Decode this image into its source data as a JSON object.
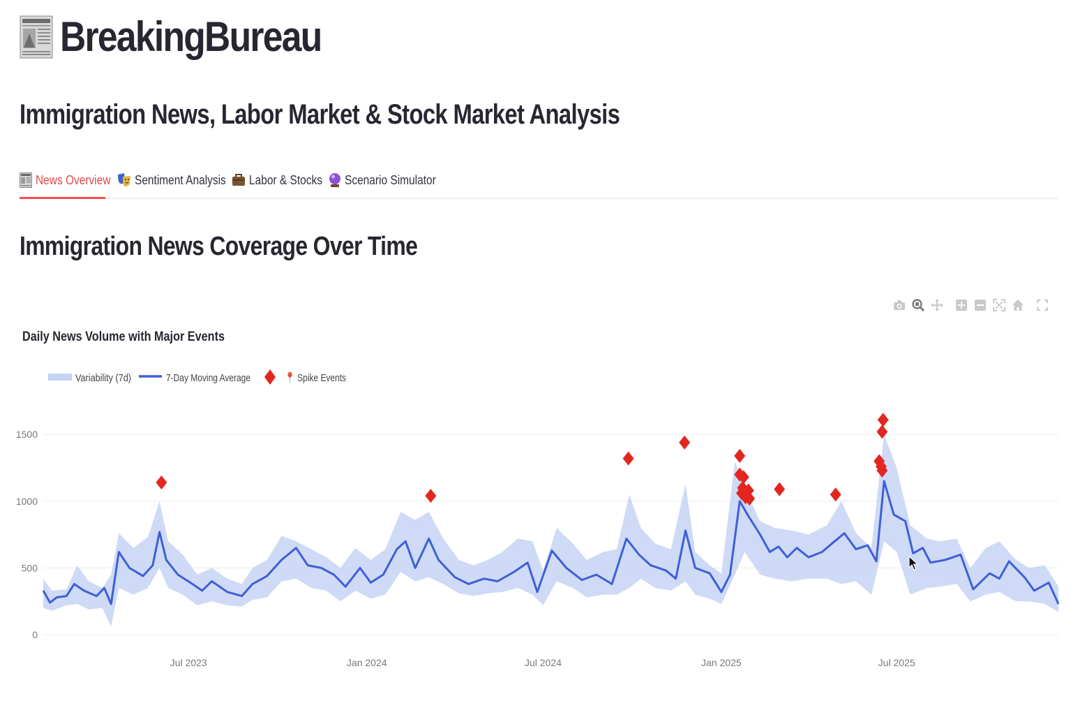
{
  "app": {
    "title": "BreakingBureau",
    "subtitle": "Immigration News, Labor Market & Stock Market Analysis"
  },
  "tabs": [
    {
      "label": "News Overview",
      "icon": "newspaper-icon",
      "active": true
    },
    {
      "label": "Sentiment Analysis",
      "icon": "theater-masks-icon",
      "active": false
    },
    {
      "label": "Labor & Stocks",
      "icon": "briefcase-icon",
      "active": false
    },
    {
      "label": "Scenario Simulator",
      "icon": "crystal-ball-icon",
      "active": false
    }
  ],
  "section": {
    "title": "Immigration News Coverage Over Time"
  },
  "modebar": [
    "camera-icon",
    "zoom-icon",
    "pan-icon",
    "zoom-in-icon",
    "zoom-out-icon",
    "autoscale-icon",
    "reset-axes-icon",
    "fullscreen-icon"
  ],
  "colors": {
    "accent": "#ff4b4b",
    "band": "#c6d3f5",
    "line": "#3f5fd6",
    "spike": "#e3261f",
    "grid": "#ebebeb",
    "text": "#262730"
  },
  "chart_data": {
    "type": "line",
    "title": "Daily News Volume with Major Events",
    "xlabel": "",
    "ylabel": "",
    "x_range": [
      "2023-02-01",
      "2025-12-15"
    ],
    "ylim": [
      0,
      1700
    ],
    "y_ticks": [
      0,
      500,
      1000,
      1500
    ],
    "x_ticks": [
      "Jul 2023",
      "Jan 2024",
      "Jul 2024",
      "Jan 2025",
      "Jul 2025"
    ],
    "x_tick_dates": [
      "2023-07-01",
      "2024-01-01",
      "2024-07-01",
      "2025-01-01",
      "2025-07-01"
    ],
    "grid": true,
    "legend_position": "top-left",
    "series": [
      {
        "name": "Variability (7d)",
        "kind": "band",
        "points": [
          [
            "2023-02-01",
            200,
            420
          ],
          [
            "2023-02-10",
            180,
            330
          ],
          [
            "2023-02-25",
            220,
            340
          ],
          [
            "2023-03-08",
            230,
            520
          ],
          [
            "2023-03-20",
            190,
            400
          ],
          [
            "2023-04-03",
            200,
            350
          ],
          [
            "2023-04-12",
            60,
            450
          ],
          [
            "2023-04-20",
            350,
            760
          ],
          [
            "2023-05-05",
            300,
            650
          ],
          [
            "2023-05-20",
            350,
            730
          ],
          [
            "2023-06-01",
            500,
            1000
          ],
          [
            "2023-06-10",
            350,
            700
          ],
          [
            "2023-06-25",
            300,
            600
          ],
          [
            "2023-07-10",
            220,
            450
          ],
          [
            "2023-07-25",
            250,
            500
          ],
          [
            "2023-08-10",
            220,
            420
          ],
          [
            "2023-08-25",
            210,
            380
          ],
          [
            "2023-09-05",
            260,
            500
          ],
          [
            "2023-09-20",
            280,
            560
          ],
          [
            "2023-10-05",
            400,
            740
          ],
          [
            "2023-10-20",
            420,
            700
          ],
          [
            "2023-11-05",
            350,
            640
          ],
          [
            "2023-11-20",
            330,
            580
          ],
          [
            "2023-12-05",
            250,
            500
          ],
          [
            "2023-12-20",
            330,
            650
          ],
          [
            "2024-01-05",
            270,
            560
          ],
          [
            "2024-01-20",
            300,
            640
          ],
          [
            "2024-02-05",
            470,
            920
          ],
          [
            "2024-02-20",
            400,
            860
          ],
          [
            "2024-03-05",
            430,
            920
          ],
          [
            "2024-03-20",
            380,
            720
          ],
          [
            "2024-04-05",
            310,
            560
          ],
          [
            "2024-04-20",
            290,
            520
          ],
          [
            "2024-05-05",
            310,
            560
          ],
          [
            "2024-05-20",
            320,
            620
          ],
          [
            "2024-06-05",
            350,
            720
          ],
          [
            "2024-06-20",
            300,
            700
          ],
          [
            "2024-07-01",
            220,
            480
          ],
          [
            "2024-07-15",
            400,
            800
          ],
          [
            "2024-08-01",
            350,
            680
          ],
          [
            "2024-08-15",
            280,
            560
          ],
          [
            "2024-09-01",
            300,
            620
          ],
          [
            "2024-09-15",
            300,
            640
          ],
          [
            "2024-09-28",
            350,
            1050
          ],
          [
            "2024-10-10",
            420,
            800
          ],
          [
            "2024-10-25",
            350,
            680
          ],
          [
            "2024-11-10",
            330,
            640
          ],
          [
            "2024-11-25",
            400,
            1130
          ],
          [
            "2024-12-05",
            300,
            620
          ],
          [
            "2024-12-20",
            270,
            520
          ],
          [
            "2025-01-01",
            230,
            460
          ],
          [
            "2025-01-15",
            450,
            1300
          ],
          [
            "2025-01-25",
            620,
            1100
          ],
          [
            "2025-02-10",
            450,
            850
          ],
          [
            "2025-02-25",
            420,
            800
          ],
          [
            "2025-03-15",
            400,
            780
          ],
          [
            "2025-04-01",
            420,
            750
          ],
          [
            "2025-04-20",
            420,
            820
          ],
          [
            "2025-05-05",
            380,
            1000
          ],
          [
            "2025-05-20",
            400,
            760
          ],
          [
            "2025-06-05",
            300,
            650
          ],
          [
            "2025-06-18",
            700,
            1500
          ],
          [
            "2025-07-01",
            620,
            1250
          ],
          [
            "2025-07-15",
            300,
            820
          ],
          [
            "2025-08-01",
            350,
            720
          ],
          [
            "2025-08-15",
            360,
            700
          ],
          [
            "2025-09-01",
            380,
            720
          ],
          [
            "2025-09-15",
            250,
            500
          ],
          [
            "2025-10-01",
            300,
            650
          ],
          [
            "2025-10-15",
            320,
            700
          ],
          [
            "2025-11-01",
            250,
            560
          ],
          [
            "2025-11-15",
            250,
            500
          ],
          [
            "2025-12-01",
            230,
            520
          ],
          [
            "2025-12-15",
            170,
            360
          ]
        ]
      },
      {
        "name": "7-Day Moving Average",
        "kind": "line",
        "points": [
          [
            "2023-02-01",
            330
          ],
          [
            "2023-02-08",
            240
          ],
          [
            "2023-02-15",
            280
          ],
          [
            "2023-02-25",
            290
          ],
          [
            "2023-03-05",
            380
          ],
          [
            "2023-03-15",
            330
          ],
          [
            "2023-03-28",
            290
          ],
          [
            "2023-04-05",
            350
          ],
          [
            "2023-04-12",
            230
          ],
          [
            "2023-04-20",
            620
          ],
          [
            "2023-05-01",
            500
          ],
          [
            "2023-05-15",
            440
          ],
          [
            "2023-05-25",
            520
          ],
          [
            "2023-06-01",
            770
          ],
          [
            "2023-06-08",
            560
          ],
          [
            "2023-06-20",
            450
          ],
          [
            "2023-07-05",
            380
          ],
          [
            "2023-07-15",
            330
          ],
          [
            "2023-07-25",
            400
          ],
          [
            "2023-08-10",
            320
          ],
          [
            "2023-08-25",
            290
          ],
          [
            "2023-09-05",
            380
          ],
          [
            "2023-09-20",
            440
          ],
          [
            "2023-10-05",
            560
          ],
          [
            "2023-10-20",
            650
          ],
          [
            "2023-11-01",
            520
          ],
          [
            "2023-11-15",
            500
          ],
          [
            "2023-11-28",
            450
          ],
          [
            "2023-12-10",
            360
          ],
          [
            "2023-12-25",
            500
          ],
          [
            "2024-01-05",
            390
          ],
          [
            "2024-01-18",
            450
          ],
          [
            "2024-02-01",
            640
          ],
          [
            "2024-02-10",
            700
          ],
          [
            "2024-02-20",
            500
          ],
          [
            "2024-03-05",
            720
          ],
          [
            "2024-03-15",
            560
          ],
          [
            "2024-04-01",
            430
          ],
          [
            "2024-04-15",
            380
          ],
          [
            "2024-05-01",
            420
          ],
          [
            "2024-05-15",
            400
          ],
          [
            "2024-06-01",
            470
          ],
          [
            "2024-06-15",
            540
          ],
          [
            "2024-06-25",
            320
          ],
          [
            "2024-07-10",
            630
          ],
          [
            "2024-07-25",
            500
          ],
          [
            "2024-08-10",
            410
          ],
          [
            "2024-08-25",
            450
          ],
          [
            "2024-09-10",
            380
          ],
          [
            "2024-09-25",
            720
          ],
          [
            "2024-10-08",
            600
          ],
          [
            "2024-10-20",
            520
          ],
          [
            "2024-11-05",
            480
          ],
          [
            "2024-11-15",
            420
          ],
          [
            "2024-11-25",
            780
          ],
          [
            "2024-12-05",
            500
          ],
          [
            "2024-12-20",
            460
          ],
          [
            "2025-01-01",
            320
          ],
          [
            "2025-01-10",
            450
          ],
          [
            "2025-01-20",
            1000
          ],
          [
            "2025-01-28",
            900
          ],
          [
            "2025-02-10",
            750
          ],
          [
            "2025-02-20",
            620
          ],
          [
            "2025-03-01",
            660
          ],
          [
            "2025-03-10",
            580
          ],
          [
            "2025-03-20",
            650
          ],
          [
            "2025-04-01",
            580
          ],
          [
            "2025-04-15",
            620
          ],
          [
            "2025-04-28",
            700
          ],
          [
            "2025-05-08",
            760
          ],
          [
            "2025-05-20",
            640
          ],
          [
            "2025-06-01",
            670
          ],
          [
            "2025-06-10",
            550
          ],
          [
            "2025-06-18",
            1150
          ],
          [
            "2025-06-28",
            900
          ],
          [
            "2025-07-10",
            850
          ],
          [
            "2025-07-18",
            610
          ],
          [
            "2025-07-28",
            650
          ],
          [
            "2025-08-05",
            540
          ],
          [
            "2025-08-20",
            560
          ],
          [
            "2025-09-05",
            600
          ],
          [
            "2025-09-18",
            340
          ],
          [
            "2025-10-05",
            460
          ],
          [
            "2025-10-15",
            420
          ],
          [
            "2025-10-25",
            550
          ],
          [
            "2025-11-10",
            430
          ],
          [
            "2025-11-20",
            330
          ],
          [
            "2025-12-05",
            390
          ],
          [
            "2025-12-15",
            230
          ]
        ]
      },
      {
        "name": "📍 Spike Events",
        "kind": "markers",
        "points": [
          [
            "2023-06-03",
            1140
          ],
          [
            "2024-03-07",
            1040
          ],
          [
            "2024-09-27",
            1320
          ],
          [
            "2024-11-24",
            1440
          ],
          [
            "2025-01-20",
            1340
          ],
          [
            "2025-01-20",
            1200
          ],
          [
            "2025-01-22",
            1060
          ],
          [
            "2025-01-24",
            1180
          ],
          [
            "2025-01-23",
            1100
          ],
          [
            "2025-01-26",
            1030
          ],
          [
            "2025-01-29",
            1080
          ],
          [
            "2025-01-30",
            1020
          ],
          [
            "2025-03-02",
            1090
          ],
          [
            "2025-04-29",
            1050
          ],
          [
            "2025-06-13",
            1300
          ],
          [
            "2025-06-15",
            1260
          ],
          [
            "2025-06-16",
            1230
          ],
          [
            "2025-06-16",
            1520
          ],
          [
            "2025-06-17",
            1610
          ]
        ]
      }
    ]
  }
}
